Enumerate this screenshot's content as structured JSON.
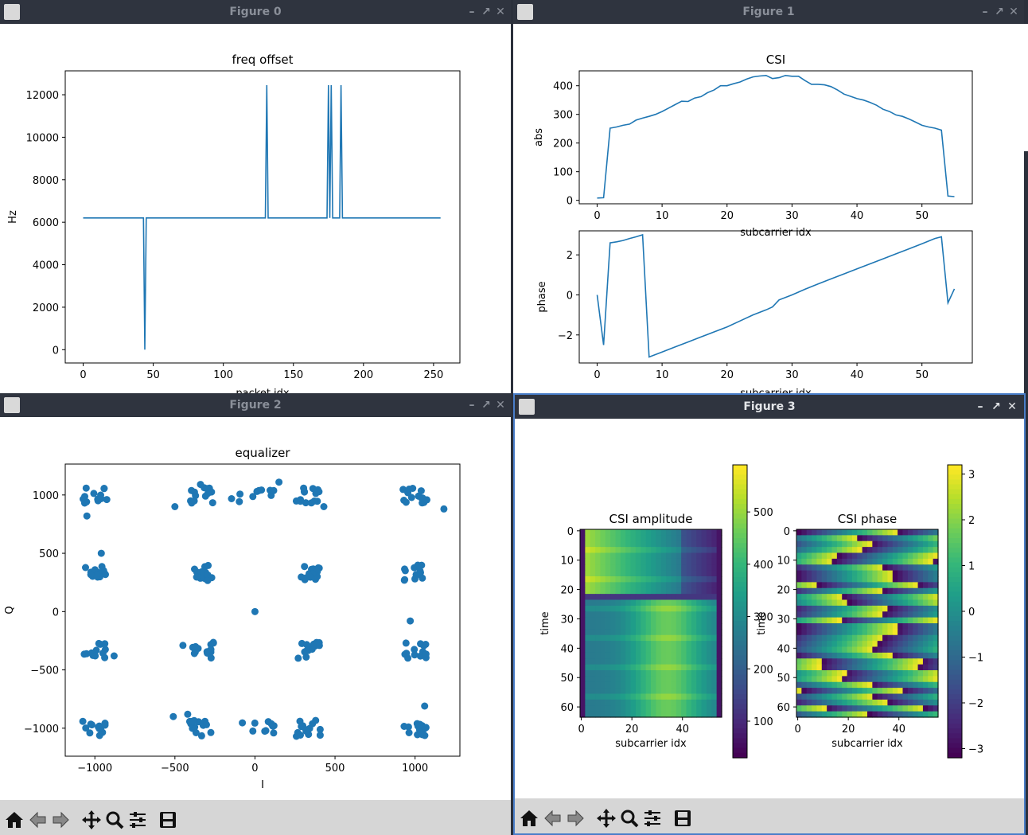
{
  "windows": [
    {
      "title": "Figure 0",
      "active": false
    },
    {
      "title": "Figure 1",
      "active": false
    },
    {
      "title": "Figure 2",
      "active": false
    },
    {
      "title": "Figure 3",
      "active": true
    }
  ],
  "window_controls": {
    "minimize": "–",
    "maximize": "↗",
    "close": "✕"
  },
  "toolbar_icons": [
    "home-icon",
    "back-arrow-icon",
    "forward-arrow-icon",
    "pan-icon",
    "zoom-icon",
    "configure-subplots-icon",
    "save-icon"
  ],
  "line_color": "#1f77b4",
  "chart_data": [
    {
      "type": "line",
      "title": "freq offset",
      "xlabel": "packet idx",
      "ylabel": "Hz",
      "xticks": [
        "0",
        "50",
        "100",
        "150",
        "200",
        "250"
      ],
      "yticks": [
        "0",
        "2000",
        "4000",
        "6000",
        "8000",
        "10000",
        "12000"
      ],
      "xlim": [
        -12.8,
        268.8
      ],
      "ylim": [
        -625,
        13125
      ],
      "x": [
        0,
        43,
        44,
        45,
        130,
        131,
        132,
        174,
        175,
        176,
        177,
        178,
        183,
        184,
        185,
        255
      ],
      "y": [
        6200,
        6200,
        0,
        6200,
        6200,
        12450,
        6200,
        6200,
        12450,
        6200,
        12450,
        6200,
        6200,
        12450,
        6200,
        6200
      ]
    },
    {
      "type": "line",
      "title": "CSI",
      "xlabel": "subcarrier idx",
      "ylabel": "abs",
      "xticks": [
        "0",
        "10",
        "20",
        "30",
        "40",
        "50"
      ],
      "yticks": [
        "0",
        "100",
        "200",
        "300",
        "400"
      ],
      "xlim": [
        -2.75,
        57.75
      ],
      "ylim": [
        -12,
        452
      ],
      "x": [
        0,
        1,
        2,
        3,
        4,
        5,
        6,
        7,
        8,
        9,
        10,
        11,
        12,
        13,
        14,
        15,
        16,
        17,
        18,
        19,
        20,
        21,
        22,
        23,
        24,
        25,
        26,
        27,
        28,
        29,
        30,
        31,
        32,
        33,
        34,
        35,
        36,
        37,
        38,
        39,
        40,
        41,
        42,
        43,
        44,
        45,
        46,
        47,
        48,
        49,
        50,
        51,
        52,
        53,
        54,
        55
      ],
      "y": [
        8,
        9,
        252,
        256,
        262,
        266,
        280,
        287,
        293,
        300,
        310,
        322,
        334,
        346,
        345,
        357,
        362,
        376,
        385,
        400,
        400,
        407,
        413,
        423,
        431,
        434,
        436,
        425,
        428,
        436,
        433,
        433,
        418,
        405,
        405,
        403,
        397,
        385,
        371,
        363,
        355,
        350,
        342,
        332,
        318,
        310,
        298,
        293,
        284,
        273,
        262,
        256,
        252,
        245,
        15,
        13
      ]
    },
    {
      "type": "line",
      "title": "",
      "xlabel": "subcarrier idx",
      "ylabel": "phase",
      "xticks": [
        "0",
        "10",
        "20",
        "30",
        "40",
        "50"
      ],
      "yticks": [
        "−2",
        "0",
        "2"
      ],
      "ytick_values": [
        -2,
        0,
        2
      ],
      "xlim": [
        -2.75,
        57.75
      ],
      "ylim": [
        -3.4,
        3.2
      ],
      "x": [
        0,
        1,
        2,
        3,
        4,
        5,
        6,
        7,
        8,
        10,
        12,
        14,
        16,
        18,
        20,
        22,
        24,
        26,
        27,
        28,
        30,
        32,
        34,
        36,
        38,
        40,
        42,
        44,
        46,
        48,
        50,
        52,
        53,
        54,
        55
      ],
      "y": [
        0,
        -2.5,
        2.6,
        2.65,
        2.72,
        2.82,
        2.9,
        3.0,
        -3.1,
        -2.85,
        -2.6,
        -2.35,
        -2.1,
        -1.85,
        -1.6,
        -1.3,
        -1.0,
        -0.75,
        -0.6,
        -0.25,
        0.0,
        0.28,
        0.55,
        0.8,
        1.05,
        1.3,
        1.55,
        1.8,
        2.05,
        2.3,
        2.55,
        2.82,
        2.9,
        -0.4,
        0.3
      ]
    },
    {
      "type": "scatter",
      "title": "equalizer",
      "xlabel": "I",
      "ylabel": "Q",
      "xticks": [
        "−1000",
        "−500",
        "0",
        "500",
        "1000"
      ],
      "xtick_values": [
        -1000,
        -500,
        0,
        500,
        1000
      ],
      "yticks": [
        "−1000",
        "−500",
        "0",
        "500",
        "1000"
      ],
      "ytick_values": [
        -1000,
        -500,
        0,
        500,
        1000
      ],
      "xlim": [
        -1185,
        1280
      ],
      "ylim": [
        -1240,
        1265
      ],
      "clusters_x": [
        -1000,
        -333,
        0,
        333,
        1000
      ],
      "clusters_y": [
        -1000,
        -333,
        0,
        333,
        1000
      ],
      "note_points": [
        [
          -1050,
          820
        ],
        [
          -500,
          900
        ],
        [
          -340,
          1090
        ],
        [
          150,
          1110
        ],
        [
          430,
          900
        ],
        [
          -510,
          -900
        ],
        [
          -420,
          -880
        ],
        [
          1060,
          -810
        ],
        [
          970,
          -80
        ],
        [
          1180,
          880
        ],
        [
          -960,
          500
        ],
        [
          -880,
          -380
        ],
        [
          270,
          -400
        ],
        [
          -450,
          -290
        ]
      ]
    },
    {
      "type": "heatmap",
      "title": "CSI amplitude",
      "xlabel": "subcarrier idx",
      "ylabel": "time",
      "xticks": [
        "0",
        "20",
        "40"
      ],
      "yticks": [
        "0",
        "10",
        "20",
        "30",
        "40",
        "50",
        "60"
      ],
      "colorbar_ticks": [
        "100",
        "200",
        "300",
        "400",
        "500"
      ],
      "colorbar_values": [
        100,
        200,
        300,
        400,
        500
      ],
      "zlim": [
        30,
        590
      ]
    },
    {
      "type": "heatmap",
      "title": "CSI phase",
      "xlabel": "subcarrier idx",
      "ylabel": "time",
      "xticks": [
        "0",
        "20",
        "40"
      ],
      "yticks": [
        "0",
        "10",
        "20",
        "30",
        "40",
        "50",
        "60"
      ],
      "colorbar_ticks": [
        "−3",
        "−2",
        "−1",
        "0",
        "1",
        "2",
        "3"
      ],
      "colorbar_values": [
        -3,
        -2,
        -1,
        0,
        1,
        2,
        3
      ],
      "zlim": [
        -3.2,
        3.2
      ]
    }
  ]
}
